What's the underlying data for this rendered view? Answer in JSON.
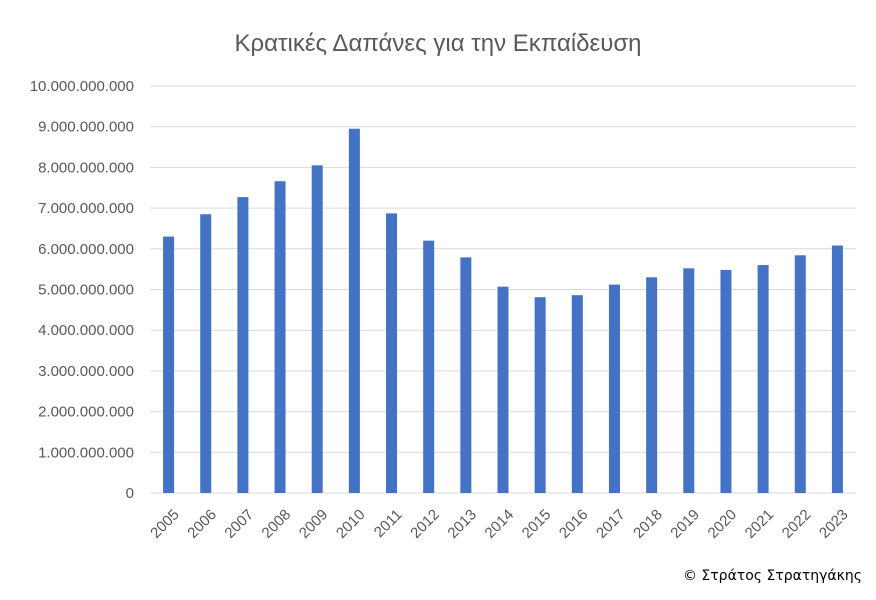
{
  "chart_data": {
    "type": "bar",
    "title": "Κρατικές Δαπάνες για την Εκπαίδευση",
    "xlabel": "",
    "ylabel": "",
    "categories": [
      "2005",
      "2006",
      "2007",
      "2008",
      "2009",
      "2010",
      "2011",
      "2012",
      "2013",
      "2014",
      "2015",
      "2016",
      "2017",
      "2018",
      "2019",
      "2020",
      "2021",
      "2022",
      "2023"
    ],
    "values": [
      6300000000,
      6850000000,
      7270000000,
      7660000000,
      8050000000,
      8950000000,
      6870000000,
      6200000000,
      5790000000,
      5070000000,
      4810000000,
      4860000000,
      5120000000,
      5300000000,
      5520000000,
      5480000000,
      5600000000,
      5840000000,
      6080000000
    ],
    "ylim": [
      0,
      10000000000
    ],
    "yticks": [
      {
        "value": 0,
        "label": "0"
      },
      {
        "value": 1000000000,
        "label": "1.000.000.000"
      },
      {
        "value": 2000000000,
        "label": "2.000.000.000"
      },
      {
        "value": 3000000000,
        "label": "3.000.000.000"
      },
      {
        "value": 4000000000,
        "label": "4.000.000.000"
      },
      {
        "value": 5000000000,
        "label": "5.000.000.000"
      },
      {
        "value": 6000000000,
        "label": "6.000.000.000"
      },
      {
        "value": 7000000000,
        "label": "7.000.000.000"
      },
      {
        "value": 8000000000,
        "label": "8.000.000.000"
      },
      {
        "value": 9000000000,
        "label": "9.000.000.000"
      },
      {
        "value": 10000000000,
        "label": "10.000.000.000"
      }
    ],
    "grid": true,
    "legend": "none",
    "bar_color": "#4472C4",
    "grid_color": "#D9D9D9"
  },
  "credit": "© Στράτος Στρατηγάκης"
}
